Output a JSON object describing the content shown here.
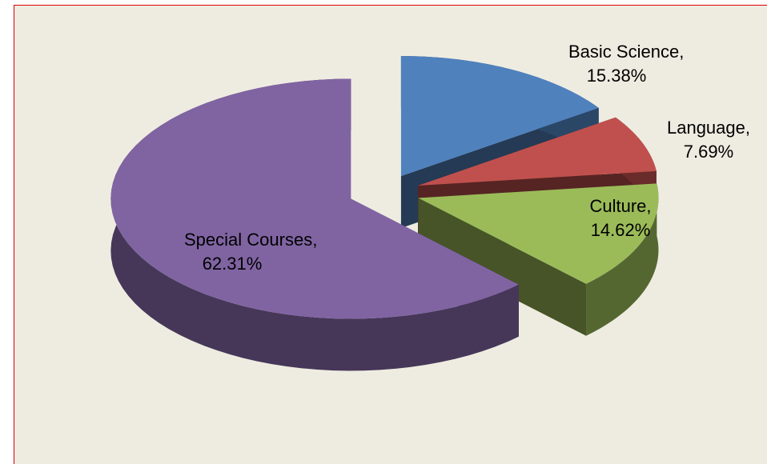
{
  "chart_data": {
    "type": "pie",
    "categories": [
      "Basic Science",
      "Language",
      "Culture",
      "Special Courses"
    ],
    "values": [
      15.38,
      7.69,
      14.62,
      62.31
    ],
    "value_labels": [
      "15.38%",
      "7.69%",
      "14.62%",
      "62.31%"
    ],
    "colors": [
      "#4f81bd",
      "#c0504d",
      "#9bbb59",
      "#8064a2"
    ]
  }
}
